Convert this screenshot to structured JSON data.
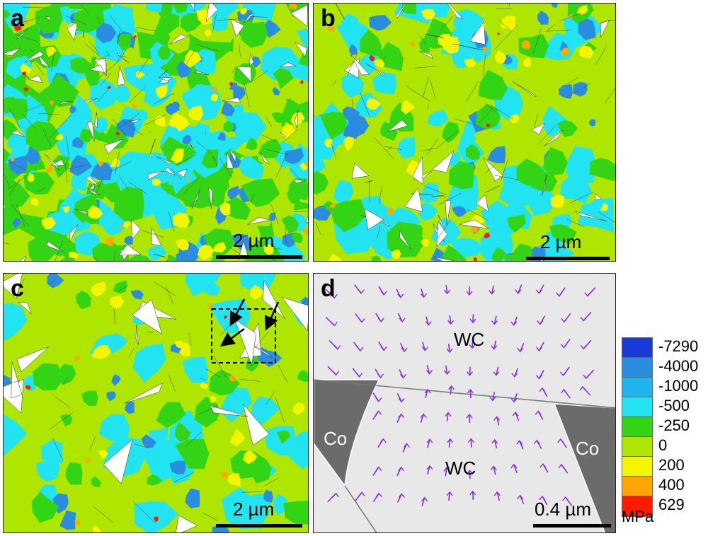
{
  "panels": [
    {
      "label": "a",
      "scale_bar": "2 µm"
    },
    {
      "label": "b",
      "scale_bar": "2 µm"
    },
    {
      "label": "c",
      "scale_bar": "2 µm"
    },
    {
      "label": "d",
      "scale_bar": "0.4 µm",
      "regions": [
        "WC",
        "Co",
        "WC",
        "Co"
      ]
    }
  ],
  "legend": {
    "entries": [
      {
        "label": "-7290",
        "color": "#1a3ad8"
      },
      {
        "label": "-4000",
        "color": "#2b8de0"
      },
      {
        "label": "-1000",
        "color": "#1fb4ee"
      },
      {
        "label": "-500",
        "color": "#22e3f0"
      },
      {
        "label": "-250",
        "color": "#33d414"
      },
      {
        "label": "0",
        "color": "#aee600"
      },
      {
        "label": "200",
        "color": "#f5f500"
      },
      {
        "label": "400",
        "color": "#ffa500"
      },
      {
        "label": "629",
        "color": "#ff1a00"
      }
    ],
    "unit": "MPa"
  },
  "colors": {
    "stress_green": "#33d414",
    "stress_lime": "#aee600",
    "stress_cyan": "#22e3f0",
    "stress_blue": "#2b8de0",
    "stress_yellow": "#f5f500",
    "stress_orange": "#ffa500",
    "stress_red": "#ff1a00",
    "pore_white": "#ffffff",
    "wc_grain_gray": "#e8e8e8",
    "co_binder_gray": "#6b6b6b",
    "arrow_purple": "#8a2be2"
  }
}
